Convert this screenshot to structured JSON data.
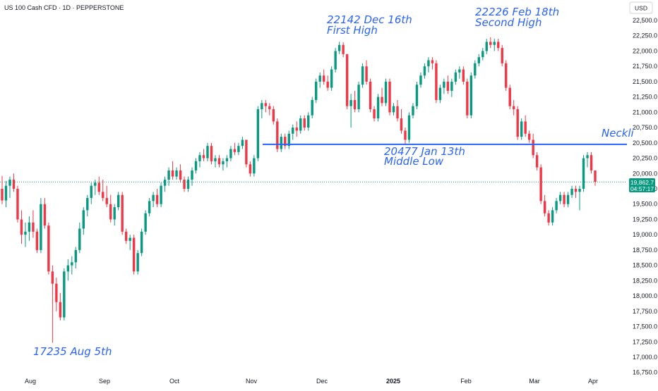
{
  "header": {
    "symbol_title": "US 100 Cash CFD · 1D · PEPPERSTONE",
    "currency": "USD"
  },
  "price_badge": {
    "price": "19,862.7",
    "countdown": "04:57:17"
  },
  "neckline_label": "Neckli",
  "annotations": {
    "first_high_price": "22142 Dec 16th",
    "first_high_label": "First High",
    "second_high_price": "22226 Feb 18th",
    "second_high_label": "Second High",
    "middle_low_price": "20477 Jan 13th",
    "middle_low_label": "Middle Low",
    "aug_low": "17235 Aug 5th"
  },
  "colors": {
    "up": "#089981",
    "down": "#f23645",
    "accent": "#2962ff",
    "text": "#131722",
    "last_price_line": "#089981"
  },
  "chart_data": {
    "type": "candlestick",
    "title": "US 100 Cash CFD · 1D · PEPPERSTONE",
    "y_axis_unit": "USD",
    "ylim": [
      16750,
      22750
    ],
    "y_ticks": [
      "22,500.0",
      "22,250.0",
      "22,000.0",
      "21,750.0",
      "21,500.0",
      "21,250.0",
      "21,000.0",
      "20,750.0",
      "20,500.0",
      "20,250.0",
      "20,000.0",
      "19,750.0",
      "19,500.0",
      "19,250.0",
      "19,000.0",
      "18,750.0",
      "18,500.0",
      "18,250.0",
      "18,000.0",
      "17,750.0",
      "17,500.0",
      "17,250.0",
      "17,000.0",
      "16,750.0"
    ],
    "x_ticks": [
      "Aug",
      "Sep",
      "Oct",
      "Nov",
      "Dec",
      "2025",
      "Feb",
      "Mar",
      "Apr"
    ],
    "neckline": 20477,
    "last_price": 19862.7,
    "key_points": [
      {
        "label": "17235 Aug 5th",
        "value": 17235
      },
      {
        "label": "22142 Dec 16th",
        "value": 22142
      },
      {
        "label": "20477 Jan 13th",
        "value": 20477
      },
      {
        "label": "22226 Feb 18th",
        "value": 22226
      }
    ],
    "candles_ohlc": [
      [
        19750,
        19960,
        19500,
        19560
      ],
      [
        19560,
        19880,
        19450,
        19800
      ],
      [
        19800,
        19950,
        19600,
        19900
      ],
      [
        19900,
        20000,
        19700,
        19750
      ],
      [
        19750,
        19800,
        19200,
        19250
      ],
      [
        19250,
        19400,
        18850,
        19000
      ],
      [
        19000,
        19200,
        18800,
        19050
      ],
      [
        19050,
        19300,
        18900,
        19200
      ],
      [
        19200,
        19400,
        18950,
        19050
      ],
      [
        19050,
        19100,
        18700,
        18750
      ],
      [
        18750,
        19600,
        18700,
        19500
      ],
      [
        19500,
        19600,
        19100,
        19150
      ],
      [
        19150,
        19200,
        18350,
        18400
      ],
      [
        18400,
        18500,
        17235,
        18200
      ],
      [
        18200,
        18300,
        17750,
        17900
      ],
      [
        17900,
        18050,
        17600,
        17650
      ],
      [
        17650,
        18450,
        17600,
        18400
      ],
      [
        18400,
        18600,
        18250,
        18500
      ],
      [
        18500,
        18650,
        18350,
        18550
      ],
      [
        18550,
        18800,
        18450,
        18750
      ],
      [
        18750,
        19200,
        18700,
        19100
      ],
      [
        19100,
        19450,
        19000,
        19400
      ],
      [
        19400,
        19650,
        19300,
        19600
      ],
      [
        19600,
        19850,
        19500,
        19800
      ],
      [
        19800,
        19900,
        19650,
        19850
      ],
      [
        19850,
        19950,
        19650,
        19700
      ],
      [
        19700,
        19900,
        19550,
        19600
      ],
      [
        19600,
        19800,
        19450,
        19500
      ],
      [
        19500,
        19650,
        19200,
        19250
      ],
      [
        19250,
        19500,
        19150,
        19450
      ],
      [
        19450,
        19700,
        19400,
        19650
      ],
      [
        19650,
        19700,
        19000,
        19050
      ],
      [
        19050,
        19100,
        18850,
        18900
      ],
      [
        18900,
        19000,
        18750,
        18950
      ],
      [
        18950,
        19000,
        18350,
        18400
      ],
      [
        18400,
        18750,
        18350,
        18700
      ],
      [
        18700,
        19100,
        18650,
        19050
      ],
      [
        19050,
        19400,
        19000,
        19350
      ],
      [
        19350,
        19600,
        19300,
        19550
      ],
      [
        19550,
        19700,
        19450,
        19650
      ],
      [
        19650,
        19750,
        19450,
        19500
      ],
      [
        19500,
        19850,
        19450,
        19800
      ],
      [
        19800,
        19950,
        19700,
        19900
      ],
      [
        19900,
        20100,
        19800,
        20050
      ],
      [
        20050,
        20200,
        19900,
        19950
      ],
      [
        19950,
        20100,
        19900,
        20050
      ],
      [
        20050,
        20150,
        19850,
        19900
      ],
      [
        19900,
        19950,
        19700,
        19750
      ],
      [
        19750,
        19950,
        19700,
        19900
      ],
      [
        19900,
        20100,
        19800,
        20050
      ],
      [
        20050,
        20250,
        20000,
        20200
      ],
      [
        20200,
        20350,
        20100,
        20300
      ],
      [
        20300,
        20400,
        20200,
        20250
      ],
      [
        20250,
        20500,
        20200,
        20450
      ],
      [
        20450,
        20500,
        20150,
        20200
      ],
      [
        20200,
        20300,
        20100,
        20250
      ],
      [
        20250,
        20300,
        20100,
        20150
      ],
      [
        20150,
        20250,
        20050,
        20200
      ],
      [
        20200,
        20300,
        20100,
        20250
      ],
      [
        20250,
        20450,
        20200,
        20400
      ],
      [
        20400,
        20500,
        20300,
        20350
      ],
      [
        20350,
        20500,
        20300,
        20450
      ],
      [
        20450,
        20600,
        20400,
        20550
      ],
      [
        20550,
        20550,
        20100,
        20150
      ],
      [
        20150,
        20200,
        19950,
        20000
      ],
      [
        20000,
        20300,
        19950,
        20250
      ],
      [
        20250,
        21100,
        20200,
        21050
      ],
      [
        21050,
        21200,
        20900,
        21150
      ],
      [
        21150,
        21200,
        21000,
        21100
      ],
      [
        21100,
        21150,
        20950,
        21050
      ],
      [
        21050,
        21100,
        20800,
        20850
      ],
      [
        20850,
        20900,
        20350,
        20400
      ],
      [
        20400,
        20650,
        20350,
        20600
      ],
      [
        20600,
        20650,
        20400,
        20450
      ],
      [
        20450,
        20700,
        20400,
        20650
      ],
      [
        20650,
        20800,
        20550,
        20750
      ],
      [
        20750,
        20850,
        20600,
        20700
      ],
      [
        20700,
        20950,
        20650,
        20900
      ],
      [
        20900,
        20950,
        20700,
        20750
      ],
      [
        20750,
        21000,
        20700,
        20950
      ],
      [
        20950,
        21250,
        20900,
        21200
      ],
      [
        21200,
        21550,
        21150,
        21500
      ],
      [
        21500,
        21650,
        21400,
        21600
      ],
      [
        21600,
        21700,
        21450,
        21500
      ],
      [
        21500,
        21600,
        21350,
        21400
      ],
      [
        21400,
        21750,
        21350,
        21700
      ],
      [
        21700,
        22050,
        21650,
        22000
      ],
      [
        22000,
        22150,
        21950,
        22100
      ],
      [
        22100,
        22142,
        21900,
        21950
      ],
      [
        21950,
        21950,
        21050,
        21100
      ],
      [
        21100,
        21300,
        20750,
        21200
      ],
      [
        21200,
        21350,
        21000,
        21050
      ],
      [
        21050,
        21500,
        21000,
        21450
      ],
      [
        21450,
        21800,
        21400,
        21750
      ],
      [
        21750,
        21850,
        21450,
        21500
      ],
      [
        21500,
        21550,
        21000,
        21050
      ],
      [
        21050,
        21100,
        20850,
        20900
      ],
      [
        20900,
        21300,
        20850,
        21250
      ],
      [
        21250,
        21400,
        21100,
        21150
      ],
      [
        21150,
        21550,
        21100,
        21500
      ],
      [
        21500,
        21550,
        20950,
        21000
      ],
      [
        21000,
        21150,
        20950,
        21100
      ],
      [
        21100,
        21200,
        20850,
        20900
      ],
      [
        20900,
        21050,
        20650,
        20700
      ],
      [
        20700,
        20750,
        20477,
        20550
      ],
      [
        20550,
        21000,
        20500,
        20950
      ],
      [
        20950,
        21150,
        20900,
        21100
      ],
      [
        21100,
        21500,
        21050,
        21450
      ],
      [
        21450,
        21650,
        21400,
        21600
      ],
      [
        21600,
        21800,
        21550,
        21750
      ],
      [
        21750,
        21900,
        21650,
        21850
      ],
      [
        21850,
        21900,
        21700,
        21800
      ],
      [
        21800,
        21850,
        21150,
        21200
      ],
      [
        21200,
        21450,
        21150,
        21400
      ],
      [
        21400,
        21550,
        21300,
        21500
      ],
      [
        21500,
        21600,
        21300,
        21350
      ],
      [
        21350,
        21550,
        21250,
        21500
      ],
      [
        21500,
        21700,
        21450,
        21650
      ],
      [
        21650,
        21750,
        21550,
        21700
      ],
      [
        21700,
        21750,
        21450,
        21500
      ],
      [
        21500,
        21550,
        20900,
        20950
      ],
      [
        20950,
        21650,
        20900,
        21600
      ],
      [
        21600,
        21850,
        21550,
        21800
      ],
      [
        21800,
        21950,
        21750,
        21900
      ],
      [
        21900,
        22050,
        21850,
        22000
      ],
      [
        22000,
        22200,
        21950,
        22150
      ],
      [
        22150,
        22226,
        22050,
        22100
      ],
      [
        22100,
        22200,
        22000,
        22150
      ],
      [
        22150,
        22200,
        22000,
        22050
      ],
      [
        22050,
        22100,
        21750,
        21800
      ],
      [
        21800,
        21850,
        21350,
        21400
      ],
      [
        21400,
        21450,
        21050,
        21100
      ],
      [
        21100,
        21200,
        20950,
        21050
      ],
      [
        21050,
        21100,
        20550,
        20600
      ],
      [
        20600,
        20900,
        20550,
        20850
      ],
      [
        20850,
        20950,
        20600,
        20650
      ],
      [
        20650,
        20700,
        20500,
        20550
      ],
      [
        20550,
        20650,
        20250,
        20300
      ],
      [
        20300,
        20350,
        20050,
        20100
      ],
      [
        20100,
        20150,
        19500,
        19550
      ],
      [
        19550,
        19650,
        19300,
        19350
      ],
      [
        19350,
        19400,
        19150,
        19200
      ],
      [
        19200,
        19450,
        19150,
        19400
      ],
      [
        19400,
        19600,
        19350,
        19550
      ],
      [
        19550,
        19700,
        19500,
        19650
      ],
      [
        19650,
        19700,
        19450,
        19500
      ],
      [
        19500,
        19700,
        19450,
        19650
      ],
      [
        19650,
        19800,
        19600,
        19750
      ],
      [
        19750,
        19800,
        19600,
        19700
      ],
      [
        19700,
        19800,
        19400,
        19750
      ],
      [
        19750,
        20300,
        19700,
        20250
      ],
      [
        20250,
        20350,
        20100,
        20300
      ],
      [
        20300,
        20350,
        20000,
        20050
      ],
      [
        20050,
        20050,
        19800,
        19862.7
      ]
    ]
  }
}
